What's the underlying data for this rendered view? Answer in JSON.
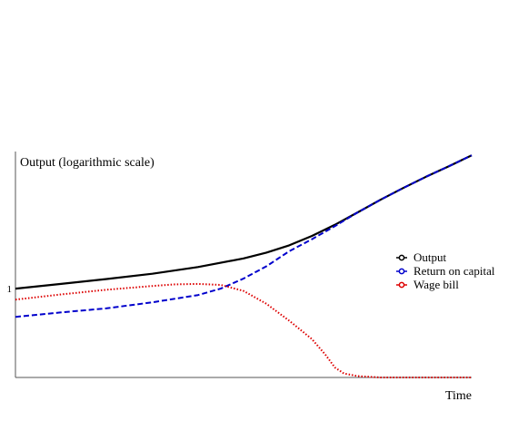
{
  "chart_data": {
    "type": "line",
    "ylabel": "Output (logarithmic scale)",
    "xlabel": "Time",
    "y_scale": "log",
    "y_tick_labels": [
      "1"
    ],
    "y_ticks": [
      1
    ],
    "xlim": [
      0,
      1
    ],
    "ylim": [
      0.2,
      12
    ],
    "grid": false,
    "legend_position": "right",
    "series": [
      {
        "name": "Output",
        "color": "#000000",
        "style": "solid",
        "x": [
          0,
          0.1,
          0.2,
          0.3,
          0.4,
          0.5,
          0.55,
          0.6,
          0.65,
          0.7,
          0.75,
          0.8,
          0.85,
          0.9,
          0.95,
          1.0
        ],
        "y": [
          1.0,
          1.09,
          1.19,
          1.31,
          1.48,
          1.73,
          1.92,
          2.19,
          2.6,
          3.18,
          3.98,
          5.0,
          6.2,
          7.6,
          9.2,
          11.2
        ]
      },
      {
        "name": "Return on capital",
        "color": "#0000cc",
        "style": "dashed",
        "x": [
          0,
          0.1,
          0.2,
          0.3,
          0.4,
          0.45,
          0.5,
          0.55,
          0.6,
          0.65,
          0.7,
          0.75,
          0.8,
          0.85,
          0.9,
          0.95,
          1.0
        ],
        "y": [
          0.6,
          0.65,
          0.7,
          0.78,
          0.89,
          1.0,
          1.2,
          1.5,
          1.97,
          2.45,
          3.1,
          3.98,
          5.0,
          6.2,
          7.6,
          9.2,
          11.2
        ]
      },
      {
        "name": "Wage bill",
        "color": "#dd0000",
        "style": "dotted",
        "x": [
          0,
          0.1,
          0.2,
          0.3,
          0.35,
          0.4,
          0.45,
          0.5,
          0.55,
          0.6,
          0.65,
          0.68,
          0.7,
          0.72,
          0.75,
          0.8,
          0.9,
          1.0
        ],
        "y": [
          0.82,
          0.9,
          0.98,
          1.05,
          1.08,
          1.09,
          1.07,
          0.96,
          0.76,
          0.56,
          0.4,
          0.3,
          0.24,
          0.215,
          0.205,
          0.2,
          0.2,
          0.2
        ]
      }
    ]
  }
}
